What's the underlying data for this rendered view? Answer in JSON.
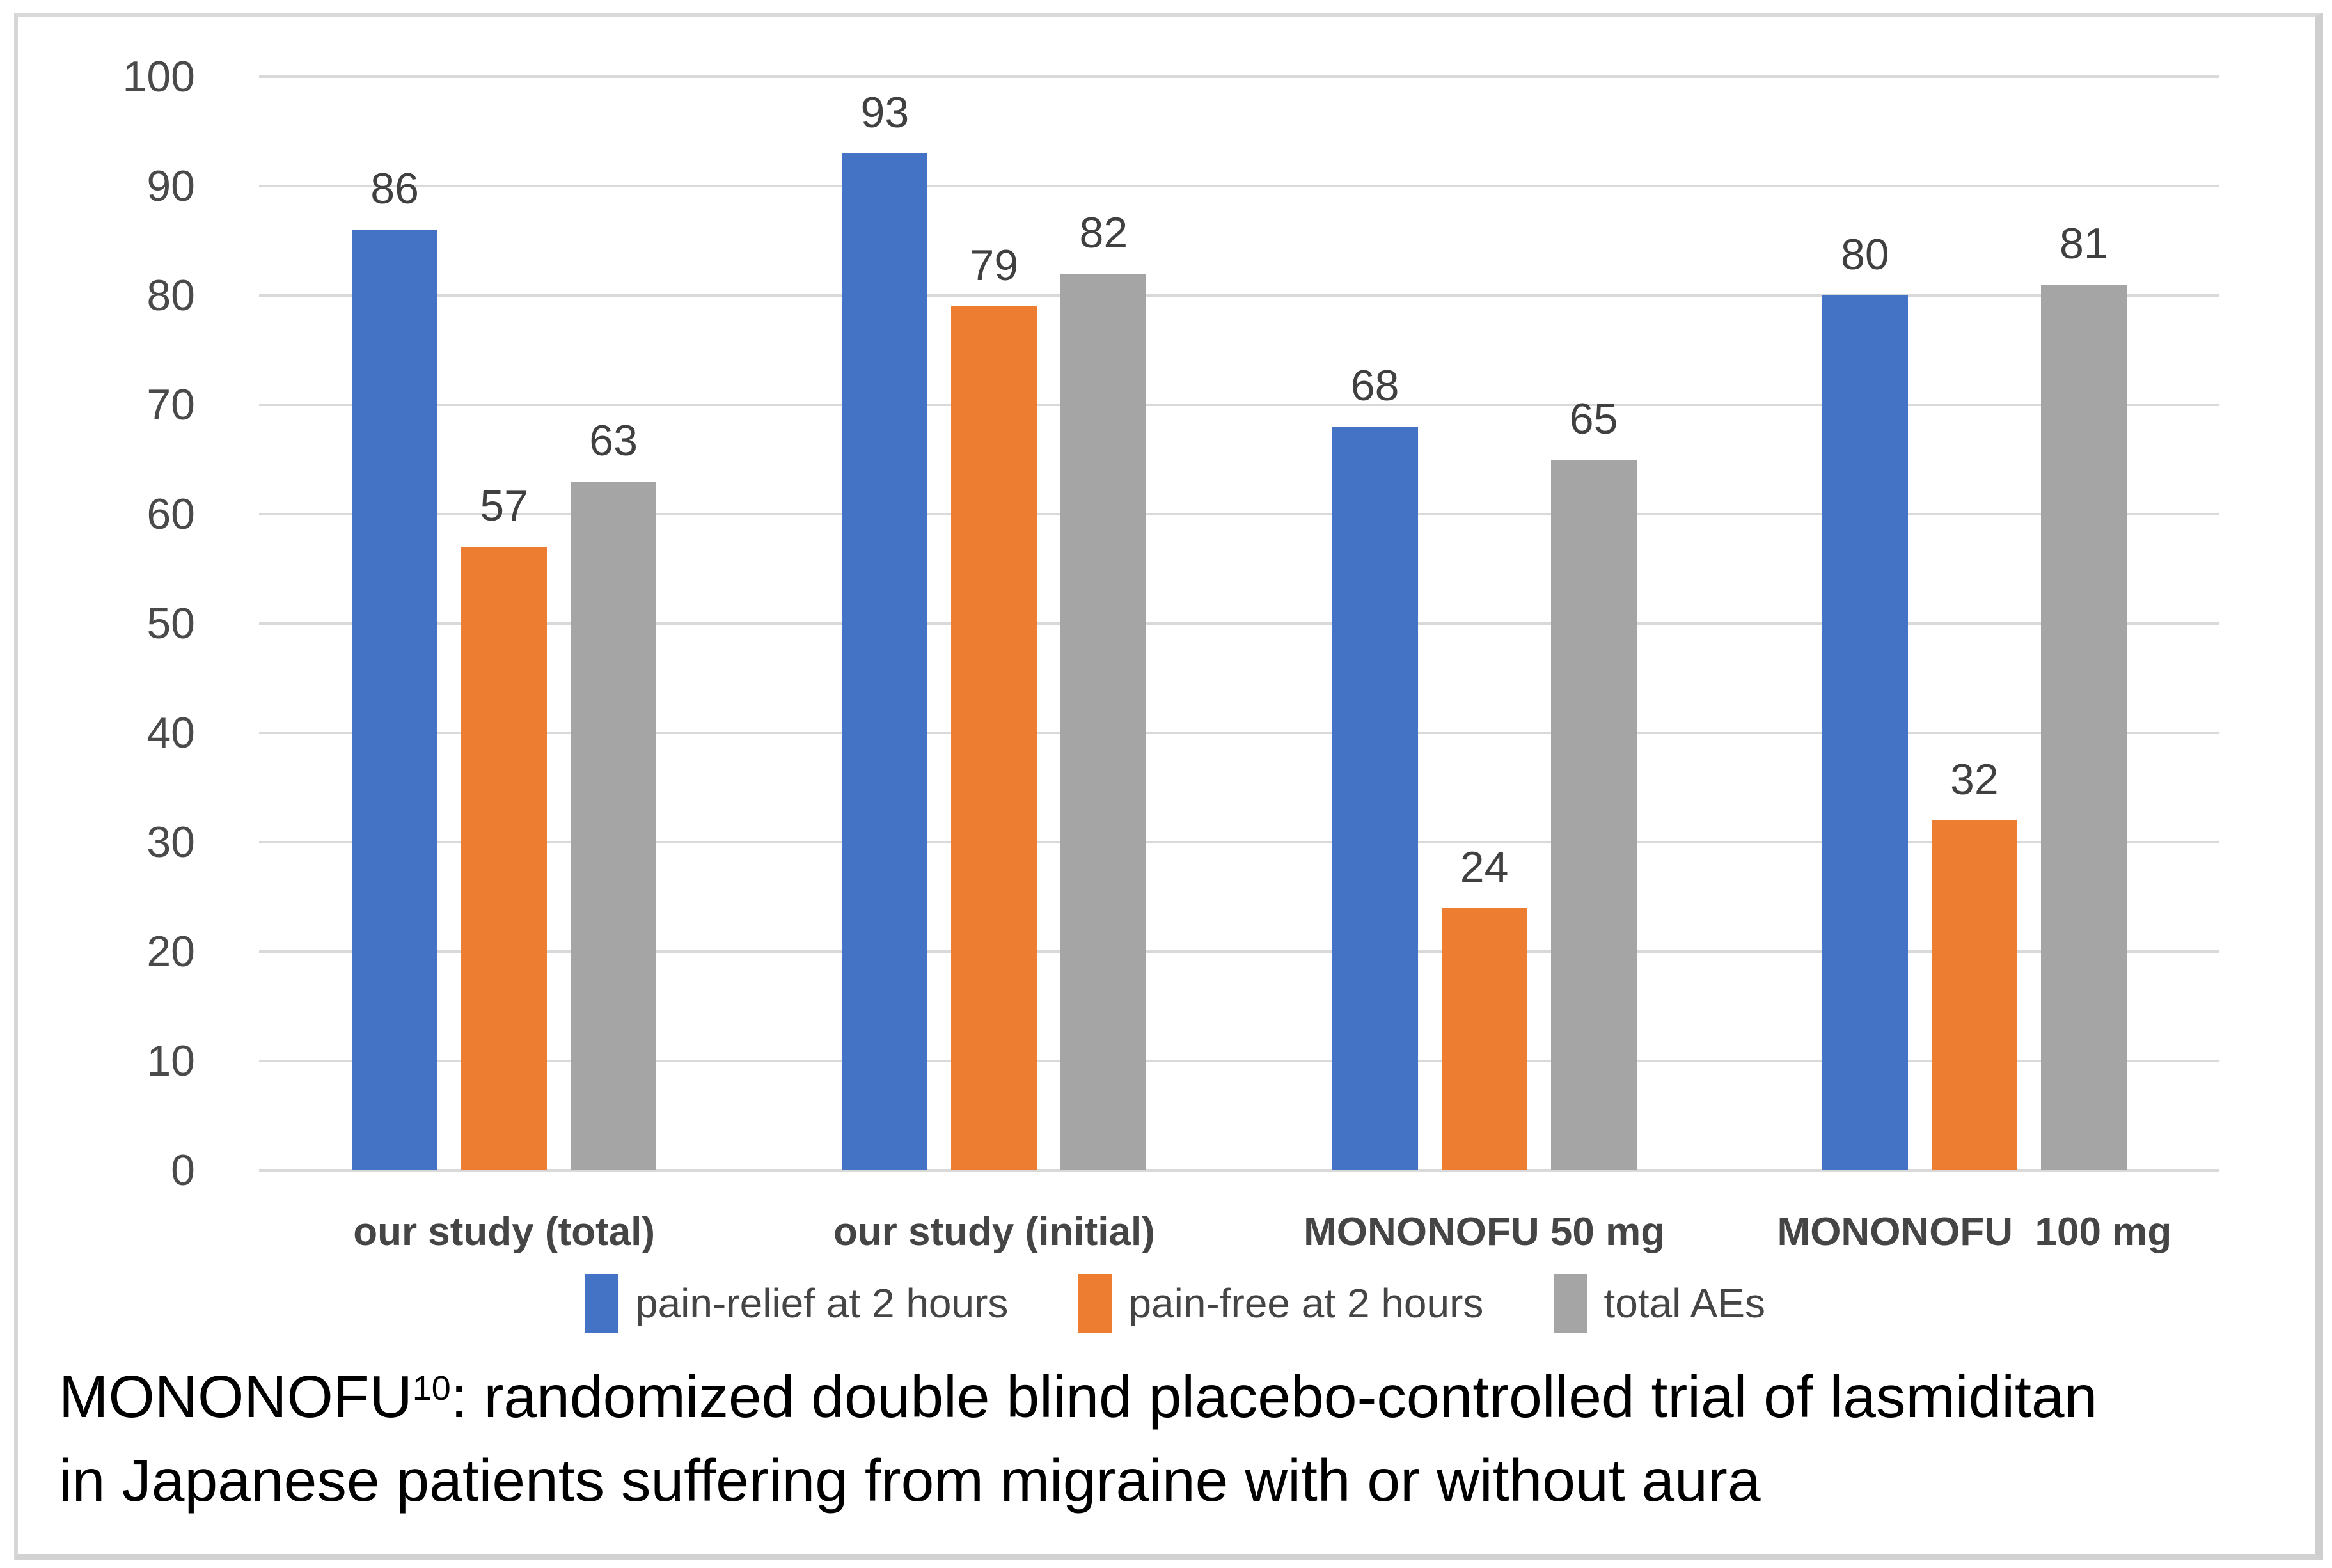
{
  "chart_data": {
    "type": "bar",
    "title": "",
    "xlabel": "",
    "ylabel": "",
    "categories": [
      "our study (total)",
      "our study (initial)",
      "MONONOFU 50 mg",
      "MONONOFU  100 mg"
    ],
    "series": [
      {
        "name": "pain-relief at 2 hours",
        "color": "#4472c4",
        "values": [
          86,
          93,
          68,
          80
        ]
      },
      {
        "name": "pain-free at 2 hours",
        "color": "#ed7d31",
        "values": [
          57,
          79,
          24,
          32
        ]
      },
      {
        "name": "total AEs",
        "color": "#a5a5a5",
        "values": [
          63,
          82,
          65,
          81
        ]
      }
    ],
    "ylim": [
      0,
      100
    ],
    "yticks": [
      0,
      10,
      20,
      30,
      40,
      50,
      60,
      70,
      80,
      90,
      100
    ],
    "grid": true,
    "gridline_color": "#d9d9d9",
    "data_labels": true,
    "legend_position": "bottom",
    "axis_text_color": "#4a4a4a"
  },
  "footnote": {
    "term": "MONONOFU",
    "superscript": "10",
    "line1_rest": ": randomized double blind placebo-controlled trial of lasmiditan",
    "line2": "in Japanese patients suffering from migraine with or without aura"
  }
}
